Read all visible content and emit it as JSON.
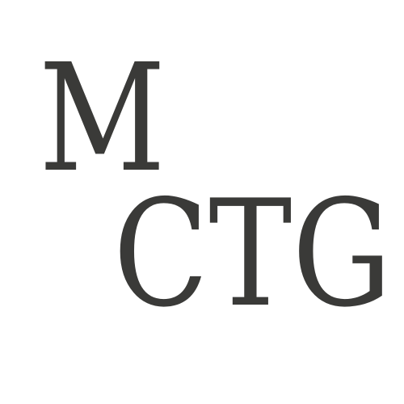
{
  "logo": {
    "top_line": "M",
    "bottom_line": "CTG",
    "ink_color": "#3a3a38",
    "background_color": "#ffffff"
  }
}
